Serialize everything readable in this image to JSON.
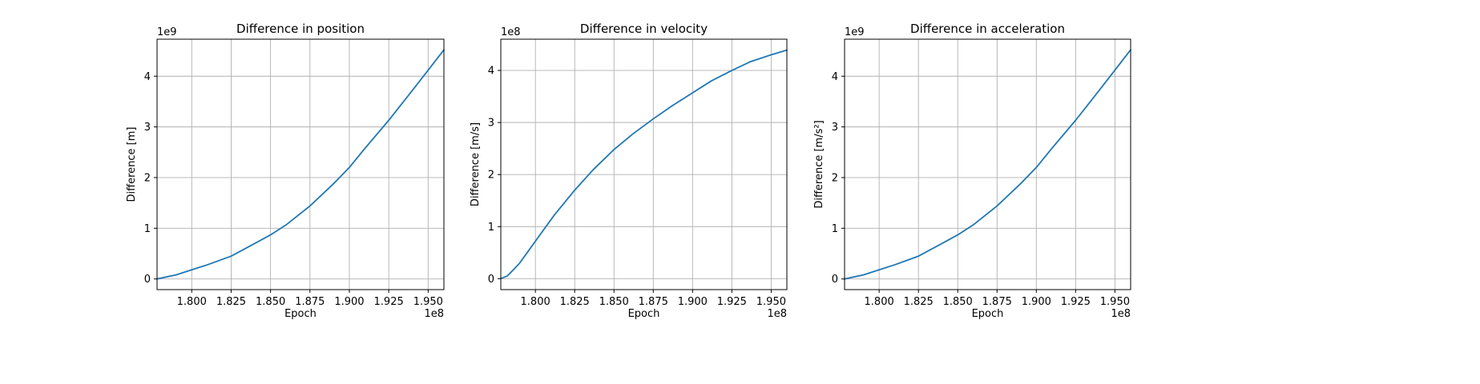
{
  "colors": {
    "series": "#1f77b4",
    "grid": "#b0b0b0",
    "axes": "#000000"
  },
  "chart_data": [
    {
      "type": "line",
      "title": "Difference in position",
      "xlabel": "Epoch",
      "ylabel": "Difference [m]",
      "ylabel_unit": "m",
      "x_offset_label": "1e8",
      "y_offset_label": "1e9",
      "xlim": [
        1.778,
        1.96
      ],
      "ylim": [
        -0.21,
        4.73
      ],
      "xticks": [
        1.8,
        1.825,
        1.85,
        1.875,
        1.9,
        1.925,
        1.95
      ],
      "xtick_labels": [
        "1.800",
        "1.825",
        "1.850",
        "1.875",
        "1.900",
        "1.925",
        "1.950"
      ],
      "yticks": [
        0,
        1,
        2,
        3,
        4
      ],
      "ytick_labels": [
        "0",
        "1",
        "2",
        "3",
        "4"
      ],
      "grid": true,
      "series": [
        {
          "x": [
            1.778,
            1.79,
            1.8,
            1.81,
            1.825,
            1.84,
            1.85,
            1.86,
            1.875,
            1.89,
            1.9,
            1.91,
            1.925,
            1.94,
            1.95,
            1.96
          ],
          "y": [
            0.0,
            0.08,
            0.18,
            0.28,
            0.45,
            0.7,
            0.87,
            1.07,
            1.44,
            1.88,
            2.2,
            2.58,
            3.13,
            3.72,
            4.12,
            4.52
          ]
        }
      ]
    },
    {
      "type": "line",
      "title": "Difference in velocity",
      "xlabel": "Epoch",
      "ylabel": "Difference [m/s]",
      "ylabel_unit": "m/s",
      "x_offset_label": "1e8",
      "y_offset_label": "1e8",
      "xlim": [
        1.778,
        1.96
      ],
      "ylim": [
        -0.21,
        4.6
      ],
      "xticks": [
        1.8,
        1.825,
        1.85,
        1.875,
        1.9,
        1.925,
        1.95
      ],
      "xtick_labels": [
        "1.800",
        "1.825",
        "1.850",
        "1.875",
        "1.900",
        "1.925",
        "1.950"
      ],
      "yticks": [
        0,
        1,
        2,
        3,
        4
      ],
      "ytick_labels": [
        "0",
        "1",
        "2",
        "3",
        "4"
      ],
      "grid": true,
      "series": [
        {
          "x": [
            1.778,
            1.782,
            1.786,
            1.79,
            1.8,
            1.812,
            1.825,
            1.837,
            1.85,
            1.862,
            1.875,
            1.887,
            1.9,
            1.912,
            1.925,
            1.937,
            1.95,
            1.96
          ],
          "y": [
            0.0,
            0.05,
            0.17,
            0.3,
            0.72,
            1.22,
            1.7,
            2.1,
            2.48,
            2.78,
            3.07,
            3.32,
            3.57,
            3.8,
            4.0,
            4.17,
            4.3,
            4.39
          ]
        }
      ]
    },
    {
      "type": "line",
      "title": "Difference in acceleration",
      "xlabel": "Epoch",
      "ylabel": "Difference [m/s²]",
      "ylabel_unit": "m/s²",
      "x_offset_label": "1e8",
      "y_offset_label": "1e9",
      "xlim": [
        1.778,
        1.96
      ],
      "ylim": [
        -0.21,
        4.73
      ],
      "xticks": [
        1.8,
        1.825,
        1.85,
        1.875,
        1.9,
        1.925,
        1.95
      ],
      "xtick_labels": [
        "1.800",
        "1.825",
        "1.850",
        "1.875",
        "1.900",
        "1.925",
        "1.950"
      ],
      "yticks": [
        0,
        1,
        2,
        3,
        4
      ],
      "ytick_labels": [
        "0",
        "1",
        "2",
        "3",
        "4"
      ],
      "grid": true,
      "series": [
        {
          "x": [
            1.778,
            1.79,
            1.8,
            1.81,
            1.825,
            1.84,
            1.85,
            1.86,
            1.875,
            1.89,
            1.9,
            1.91,
            1.925,
            1.94,
            1.95,
            1.96
          ],
          "y": [
            0.0,
            0.08,
            0.18,
            0.28,
            0.45,
            0.7,
            0.87,
            1.07,
            1.44,
            1.88,
            2.2,
            2.58,
            3.13,
            3.72,
            4.12,
            4.52
          ]
        }
      ]
    }
  ]
}
